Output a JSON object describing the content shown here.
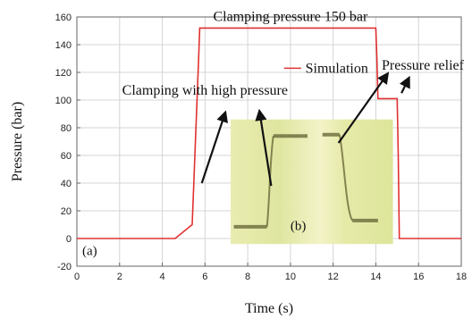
{
  "chart_data": {
    "type": "line",
    "xlabel": "Time (s)",
    "ylabel": "Pressure (bar)",
    "xlim": [
      0,
      18
    ],
    "ylim": [
      -20,
      160
    ],
    "xticks": [
      0,
      2,
      4,
      6,
      8,
      10,
      12,
      14,
      16,
      18
    ],
    "yticks": [
      -20,
      0,
      20,
      40,
      60,
      80,
      100,
      120,
      140,
      160
    ],
    "grid": true,
    "legend_placement": "upper-middle",
    "series": [
      {
        "name": "Simulation",
        "color": "#e03030",
        "x": [
          0,
          4.6,
          5.4,
          5.55,
          5.7,
          5.75,
          14.0,
          14.05,
          14.1,
          15.0,
          15.05,
          15.1,
          18
        ],
        "y": [
          0,
          0,
          10,
          70,
          130,
          152,
          152,
          130,
          101,
          101,
          60,
          0,
          0
        ]
      }
    ],
    "annotations": [
      {
        "text": "Clamping pressure 150 bar",
        "x": 10.0,
        "y": 157
      },
      {
        "text": "Clamping with high pressure",
        "x": 6.0,
        "y": 104
      },
      {
        "text": "Pressure relief",
        "x": 16.2,
        "y": 122
      }
    ],
    "panel_labels": {
      "a": "(a)",
      "b": "(b)"
    }
  }
}
